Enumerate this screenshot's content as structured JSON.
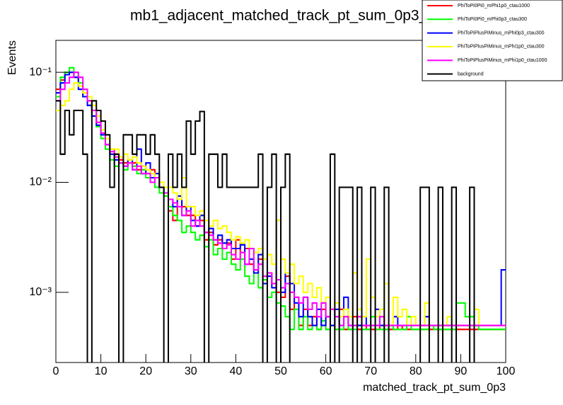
{
  "chart_data": {
    "type": "histogram",
    "title": "mb1_adjacent_matched_track_pt_sum_0p3_0",
    "x_label": "matched_track_pt_sum_0p3",
    "y_label": "Events",
    "log_y": true,
    "legend_position": "top-right",
    "xlim": [
      0,
      100
    ],
    "ylim": [
      0.00023,
      0.195
    ],
    "xticks": [
      0,
      10,
      20,
      30,
      40,
      50,
      60,
      70,
      80,
      90,
      100
    ],
    "yticks": [
      {
        "value": 0.001,
        "label": "10⁻³"
      },
      {
        "value": 0.01,
        "label": "10⁻²"
      },
      {
        "value": 0.1,
        "label": "10⁻¹"
      }
    ],
    "bins": [
      0,
      1,
      2,
      3,
      4,
      5,
      6,
      7,
      8,
      9,
      10,
      11,
      12,
      13,
      14,
      15,
      16,
      17,
      18,
      19,
      20,
      21,
      22,
      23,
      24,
      25,
      26,
      27,
      28,
      29,
      30,
      31,
      32,
      33,
      34,
      35,
      36,
      37,
      38,
      39,
      40,
      41,
      42,
      43,
      44,
      45,
      46,
      47,
      48,
      49,
      50,
      51,
      52,
      53,
      54,
      55,
      56,
      57,
      58,
      59,
      60,
      61,
      62,
      63,
      64,
      65,
      66,
      67,
      68,
      69,
      70,
      71,
      72,
      73,
      74,
      75,
      76,
      77,
      78,
      79,
      80,
      81,
      82,
      83,
      84,
      85,
      86,
      87,
      88,
      89,
      90,
      91,
      92,
      93,
      94,
      95,
      96,
      97,
      98,
      99,
      100
    ],
    "series": [
      {
        "name": "PhiToPi0Pi0_mPhi1p0_ctau1000",
        "color": "#ff0000",
        "values": [
          0.07,
          0.085,
          0.1,
          0.1,
          0.09,
          0.075,
          0.065,
          0.055,
          0.045,
          0.035,
          0.028,
          0.022,
          0.02,
          0.018,
          0.016,
          0.015,
          0.016,
          0.015,
          0.013,
          0.014,
          0.012,
          0.013,
          0.011,
          0.009,
          0.008,
          0.0055,
          0.0045,
          0.007,
          0.006,
          0.005,
          0.005,
          0.004,
          0.0045,
          0.003,
          0.0035,
          0.0027,
          0.003,
          0.0025,
          0.0028,
          0.002,
          0.003,
          0.002,
          0.0025,
          0.0018,
          0.0016,
          0.002,
          0.0012,
          0.0015,
          0.0012,
          0.001,
          0.0009,
          0.0014,
          0.0007,
          0.0009,
          0.0005,
          0.0007,
          0.0005,
          0.0006,
          0.00046,
          0.0007,
          0.00046,
          0.0005,
          0.00046,
          0.0007,
          0.00046,
          0.00046,
          0.0006,
          0.00046,
          0.0005,
          0.00046,
          0.00046,
          0.00046,
          0.0005,
          0.00046,
          0.00046,
          0.00046,
          0.0005,
          0.00046,
          0.00046,
          0.00046,
          0.00046,
          0.00046,
          0.00046,
          0.00046,
          0.00046,
          0.00046,
          0.00046,
          0.00046,
          0.00046,
          0.00046,
          0.00046,
          0.00046,
          0.00046,
          0.00046,
          0.00046,
          0.00046,
          0.00046,
          0.00046,
          0.00046,
          0.00046
        ]
      },
      {
        "name": "PhiToPi0Pi0_mPhi0p3_ctau300",
        "color": "#00ff00",
        "values": [
          0.06,
          0.09,
          0.1,
          0.11,
          0.1,
          0.08,
          0.06,
          0.05,
          0.04,
          0.032,
          0.025,
          0.02,
          0.016,
          0.014,
          0.015,
          0.013,
          0.015,
          0.014,
          0.012,
          0.013,
          0.011,
          0.01,
          0.009,
          0.008,
          0.0075,
          0.006,
          0.005,
          0.0045,
          0.0035,
          0.004,
          0.0035,
          0.003,
          0.0033,
          0.0026,
          0.003,
          0.0022,
          0.0025,
          0.002,
          0.0023,
          0.0018,
          0.0016,
          0.002,
          0.0014,
          0.0012,
          0.0015,
          0.0011,
          0.0013,
          0.0009,
          0.001,
          0.0008,
          0.00075,
          0.0006,
          0.00046,
          0.0007,
          0.00046,
          0.0006,
          0.00046,
          0.0005,
          0.00046,
          0.00055,
          0.00046,
          0.0005,
          0.00046,
          0.00046,
          0.0006,
          0.00046,
          0.00046,
          0.0005,
          0.00046,
          0.00046,
          0.0006,
          0.00046,
          0.00046,
          0.00046,
          0.0005,
          0.00046,
          0.00046,
          0.00046,
          0.0006,
          0.00046,
          0.00046,
          0.00046,
          0.00046,
          0.0005,
          0.00046,
          0.00046,
          0.00046,
          0.00046,
          0.00046,
          0.0008,
          0.0008,
          0.0006,
          0.0006,
          0.0005,
          0.00046,
          0.00046,
          0.00046,
          0.00046,
          0.00046,
          0.00046
        ]
      },
      {
        "name": "PhiToPiPlusPiMinus_mPhi0p3_ctau300",
        "color": "#0000ff",
        "values": [
          0.065,
          0.08,
          0.095,
          0.1,
          0.09,
          0.07,
          0.06,
          0.05,
          0.04,
          0.033,
          0.027,
          0.022,
          0.018,
          0.016,
          0.015,
          0.014,
          0.016,
          0.013,
          0.02,
          0.012,
          0.015,
          0.011,
          0.012,
          0.009,
          0.008,
          0.007,
          0.006,
          0.0075,
          0.005,
          0.006,
          0.0045,
          0.004,
          0.005,
          0.0035,
          0.0038,
          0.003,
          0.0033,
          0.0028,
          0.003,
          0.0025,
          0.0025,
          0.0027,
          0.0018,
          0.002,
          0.0015,
          0.0022,
          0.0012,
          0.0014,
          0.0011,
          0.0045,
          0.001,
          0.0015,
          0.0012,
          0.0008,
          0.0006,
          0.0009,
          0.0006,
          0.0005,
          0.0007,
          0.0005,
          0.0006,
          0.0005,
          0.0007,
          0.0005,
          0.0009,
          0.0005,
          0.0005,
          0.0005,
          0.0006,
          0.0005,
          0.0005,
          0.0007,
          0.0005,
          0.0005,
          0.0005,
          0.0006,
          0.0005,
          0.0005,
          0.0005,
          0.0005,
          0.0005,
          0.0005,
          0.0006,
          0.0005,
          0.0005,
          0.0005,
          0.0005,
          0.0005,
          0.0005,
          0.0005,
          0.0005,
          0.0005,
          0.0005,
          0.0005,
          0.0005,
          0.0005,
          0.0005,
          0.0005,
          0.0005,
          0.0016
        ]
      },
      {
        "name": "PhiToPiPlusPiMinus_mPhi1p0_ctau300",
        "color": "#ffff00",
        "values": [
          0.045,
          0.05,
          0.055,
          0.07,
          0.08,
          0.075,
          0.065,
          0.06,
          0.05,
          0.04,
          0.03,
          0.025,
          0.02,
          0.02,
          0.017,
          0.018,
          0.016,
          0.017,
          0.015,
          0.014,
          0.013,
          0.012,
          0.011,
          0.01,
          0.009,
          0.009,
          0.008,
          0.007,
          0.011,
          0.006,
          0.006,
          0.005,
          0.0055,
          0.0045,
          0.004,
          0.0045,
          0.0038,
          0.004,
          0.0035,
          0.003,
          0.0032,
          0.0028,
          0.003,
          0.0025,
          0.0023,
          0.0025,
          0.002,
          0.0022,
          0.0018,
          0.0045,
          0.002,
          0.0015,
          0.0018,
          0.0012,
          0.0014,
          0.001,
          0.0012,
          0.0009,
          0.0011,
          0.0008,
          0.0009,
          0.0007,
          0.0008,
          0.0006,
          0.0007,
          0.0006,
          0.0015,
          0.0007,
          0.0006,
          0.002,
          0.0009,
          0.0006,
          0.0007,
          0.0012,
          0.0005,
          0.0009,
          0.0006,
          0.0007,
          0.0005,
          0.0006,
          0.0005,
          0.0005,
          0.0008,
          0.0005,
          0.0005,
          0.0005,
          0.0005,
          0.0006,
          0.0005,
          0.0005,
          0.0005,
          0.0005,
          0.0005,
          0.0007,
          0.0005,
          0.0005,
          0.0005,
          0.0005,
          0.0005,
          0.0005
        ]
      },
      {
        "name": "PhiToPiPlusPiMinus_mPhi1p0_ctau1000",
        "color": "#ff00ff",
        "values": [
          0.055,
          0.07,
          0.08,
          0.09,
          0.1,
          0.09,
          0.07,
          0.055,
          0.045,
          0.035,
          0.028,
          0.022,
          0.019,
          0.017,
          0.015,
          0.014,
          0.015,
          0.013,
          0.014,
          0.012,
          0.012,
          0.01,
          0.011,
          0.009,
          0.008,
          0.007,
          0.0065,
          0.006,
          0.005,
          0.0055,
          0.004,
          0.0045,
          0.004,
          0.0035,
          0.0033,
          0.003,
          0.0028,
          0.0025,
          0.0027,
          0.0022,
          0.002,
          0.0023,
          0.0018,
          0.0025,
          0.0016,
          0.0018,
          0.0014,
          0.0015,
          0.0012,
          0.0013,
          0.0011,
          0.0012,
          0.001,
          0.0009,
          0.0008,
          0.0009,
          0.0007,
          0.0008,
          0.0006,
          0.0008,
          0.0006,
          0.0007,
          0.0006,
          0.0005,
          0.0006,
          0.0005,
          0.0005,
          0.0006,
          0.0005,
          0.0005,
          0.0005,
          0.0005,
          0.0006,
          0.0005,
          0.0005,
          0.0005,
          0.0005,
          0.0005,
          0.0005,
          0.0005,
          0.0005,
          0.0005,
          0.0005,
          0.0005,
          0.0005,
          0.0005,
          0.0005,
          0.0005,
          0.0005,
          0.0005,
          0.0005,
          0.0005,
          0.0005,
          0.0005,
          0.0005,
          0.0005,
          0.0005,
          0.0005,
          0.0005,
          0.0005
        ]
      },
      {
        "name": "background",
        "color": "#000000",
        "values": [
          0.055,
          0.018,
          0.045,
          0.027,
          0.045,
          0.045,
          0.018,
          0,
          0.055,
          0.045,
          0.036,
          0.027,
          0.009,
          0.018,
          0,
          0.027,
          0.027,
          0.018,
          0.027,
          0.027,
          0.018,
          0.027,
          0.018,
          0.009,
          0,
          0.018,
          0.009,
          0.018,
          0.009,
          0.036,
          0.018,
          0.036,
          0.044,
          0,
          0.018,
          0.018,
          0.009,
          0.018,
          0.009,
          0.009,
          0.009,
          0.009,
          0.009,
          0.009,
          0.009,
          0.018,
          0,
          0.009,
          0.018,
          0,
          0.009,
          0.018,
          0,
          0,
          0,
          0,
          0,
          0,
          0,
          0,
          0,
          0.018,
          0,
          0.009,
          0.009,
          0.009,
          0,
          0.009,
          0,
          0,
          0.009,
          0,
          0,
          0.009,
          0,
          0,
          0,
          0,
          0,
          0,
          0,
          0.009,
          0.009,
          0,
          0,
          0.009,
          0,
          0,
          0.009,
          0,
          0,
          0,
          0.009,
          0,
          0,
          0,
          0,
          0,
          0,
          0
        ]
      }
    ]
  }
}
